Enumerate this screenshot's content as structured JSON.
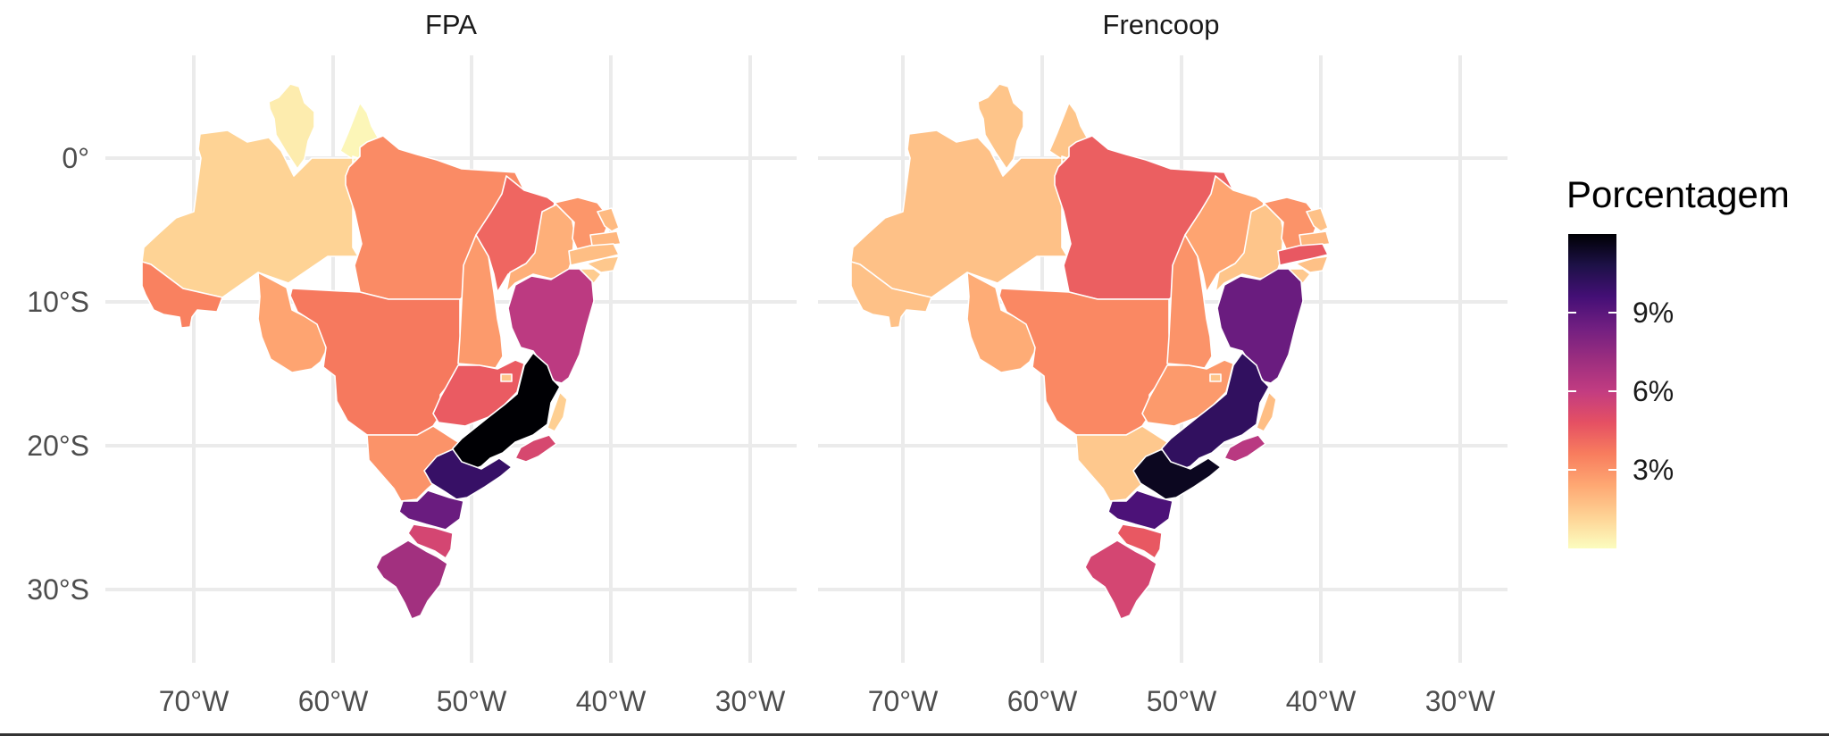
{
  "panels": [
    {
      "title": "FPA",
      "values": {
        "RR": 0.5,
        "AP": 0.2,
        "AM": 1.2,
        "PA": 3.2,
        "AC": 3.5,
        "RO": 2.5,
        "MT": 3.7,
        "TO": 2.8,
        "MA": 4.2,
        "PI": 2.2,
        "CE": 2.9,
        "RN": 1.9,
        "PB": 2.0,
        "PE": 1.8,
        "AL": 1.5,
        "SE": 1.4,
        "BA": 6.2,
        "GO": 4.5,
        "DF": 1.6,
        "MS": 3.0,
        "MG": 12.0,
        "ES": 1.3,
        "RJ": 5.3,
        "SP": 10.0,
        "PR": 8.6,
        "SC": 5.4,
        "RS": 7.0
      }
    },
    {
      "title": "Frencoop",
      "values": {
        "RR": 1.6,
        "AP": 1.6,
        "AM": 1.7,
        "PA": 4.4,
        "AC": 1.7,
        "RO": 2.3,
        "MT": 3.3,
        "TO": 3.0,
        "MA": 2.5,
        "PI": 1.6,
        "CE": 3.0,
        "RN": 1.7,
        "PB": 2.0,
        "PE": 4.6,
        "AL": 1.7,
        "SE": 1.5,
        "BA": 8.6,
        "GO": 2.8,
        "DF": 1.6,
        "MS": 1.5,
        "MG": 10.2,
        "ES": 1.8,
        "RJ": 6.3,
        "SP": 11.5,
        "PR": 9.4,
        "SC": 4.6,
        "RS": 5.4
      }
    }
  ],
  "axes": {
    "x_ticks": [
      "70°W",
      "60°W",
      "50°W",
      "40°W",
      "30°W"
    ],
    "y_ticks": [
      "0°",
      "10°S",
      "20°S",
      "30°S"
    ]
  },
  "legend": {
    "title": "Porcentagem",
    "ticks": [
      "9%",
      "6%",
      "3%"
    ],
    "tick_values": [
      9,
      6,
      3
    ],
    "range": [
      0,
      12
    ],
    "palette": [
      "#fcfdbf",
      "#fed395",
      "#fea873",
      "#f87d5e",
      "#e55063",
      "#c23c81",
      "#9c2e7f",
      "#721f81",
      "#440f76",
      "#1d1147",
      "#000004"
    ]
  }
}
